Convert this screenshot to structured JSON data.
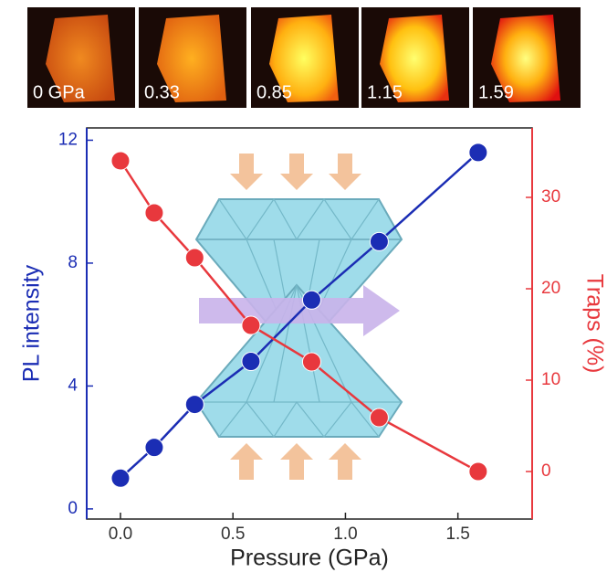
{
  "images": {
    "labels": [
      "0 GPa",
      "0.33",
      "0.85",
      "1.15",
      "1.59"
    ]
  },
  "chart_data": {
    "type": "line",
    "xlabel": "Pressure (GPa)",
    "ylabel": "PL intensity",
    "y2label": "Traps (%)",
    "x": [
      0,
      0.15,
      0.33,
      0.58,
      0.85,
      1.15,
      1.59
    ],
    "series": [
      {
        "color": "#1b2db4",
        "values": [
          1.0,
          2.0,
          3.4,
          4.8,
          6.8,
          8.7,
          11.6
        ]
      },
      {
        "color": "#e8383d",
        "values": [
          34,
          28.3,
          23.4,
          16,
          12,
          5.9,
          0
        ],
        "axis": "y2"
      }
    ],
    "xlim": [
      -0.15,
      1.83
    ],
    "xticks": [
      {
        "value": 0,
        "label": "0.0"
      },
      {
        "value": 0.5,
        "label": "0.5"
      },
      {
        "value": 1,
        "label": "1.0"
      },
      {
        "value": 1.5,
        "label": "1.5"
      }
    ],
    "ylim": [
      -0.33,
      12.4
    ],
    "yticks": [
      0,
      4,
      8,
      12
    ],
    "y2lim": [
      -5.2,
      37.6
    ],
    "y2ticks": [
      0,
      10,
      20,
      30
    ]
  }
}
